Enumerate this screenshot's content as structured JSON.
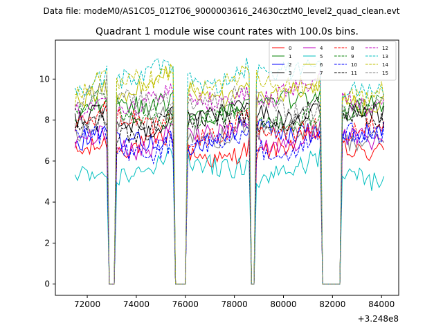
{
  "suptitle": "Data file: modeM0/AS1C05_012T06_9000003616_24630cztM0_level2_quad_clean.evt",
  "chart_data": {
    "type": "line",
    "title": "Quadrant 1 module wise count rates with 100.0s bins.",
    "xlabel": "",
    "ylabel": "",
    "x_offset_label": "+3.248e8",
    "xlim": [
      70700,
      84700
    ],
    "ylim": [
      -0.55,
      11.9
    ],
    "xticks": [
      72000,
      74000,
      76000,
      78000,
      80000,
      82000,
      84000
    ],
    "xtick_labels": [
      "72000",
      "74000",
      "76000",
      "78000",
      "80000",
      "82000",
      "84000"
    ],
    "yticks": [
      0,
      2,
      4,
      6,
      8,
      10
    ],
    "ytick_labels": [
      "0",
      "2",
      "4",
      "6",
      "8",
      "10"
    ],
    "legend_position": "top-right",
    "legend_columns": 4,
    "series": [
      {
        "name": "0",
        "color": "#ff0000",
        "dash": "solid",
        "base": 6.6
      },
      {
        "name": "1",
        "color": "#008000",
        "dash": "solid",
        "base": 8.6
      },
      {
        "name": "2",
        "color": "#0000ff",
        "dash": "solid",
        "base": 7.1
      },
      {
        "name": "3",
        "color": "#000000",
        "dash": "solid",
        "base": 8.0
      },
      {
        "name": "4",
        "color": "#bf00bf",
        "dash": "solid",
        "base": 6.9
      },
      {
        "name": "5",
        "color": "#00bfbf",
        "dash": "solid",
        "base": 5.4
      },
      {
        "name": "6",
        "color": "#bfbf00",
        "dash": "solid",
        "base": 9.2
      },
      {
        "name": "7",
        "color": "#808080",
        "dash": "solid",
        "base": 7.5
      },
      {
        "name": "8",
        "color": "#ff0000",
        "dash": "dashed",
        "base": 7.6
      },
      {
        "name": "9",
        "color": "#008000",
        "dash": "dashed",
        "base": 8.2
      },
      {
        "name": "10",
        "color": "#0000ff",
        "dash": "dashed",
        "base": 6.8
      },
      {
        "name": "11",
        "color": "#000000",
        "dash": "dashed",
        "base": 7.9
      },
      {
        "name": "12",
        "color": "#bf00bf",
        "dash": "dashed",
        "base": 8.9
      },
      {
        "name": "13",
        "color": "#00bfbf",
        "dash": "dashed",
        "base": 9.9
      },
      {
        "name": "14",
        "color": "#bfbf00",
        "dash": "dashed",
        "base": 9.5
      },
      {
        "name": "15",
        "color": "#808080",
        "dash": "dashed",
        "base": 8.7
      }
    ],
    "time_range": [
      71500,
      84100
    ],
    "bin_size": 100,
    "zero_gaps": [
      [
        72900,
        73100
      ],
      [
        75600,
        76000
      ],
      [
        78700,
        78800
      ],
      [
        81600,
        82300
      ]
    ]
  }
}
